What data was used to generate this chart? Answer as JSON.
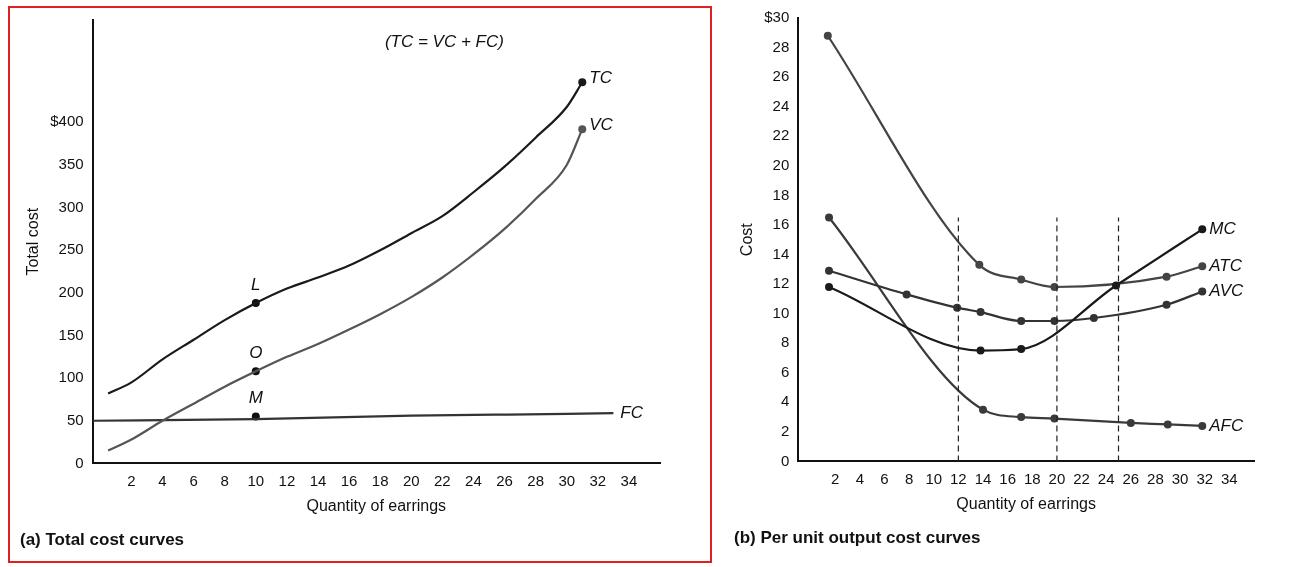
{
  "chart_data": [
    {
      "type": "line",
      "title": "(a) Total cost curves",
      "xlabel": "Quantity of earrings",
      "ylabel": "Total cost",
      "xlim": [
        -0.5,
        36
      ],
      "xticks": [
        2,
        4,
        6,
        8,
        10,
        12,
        14,
        16,
        18,
        20,
        22,
        24,
        26,
        28,
        30,
        32,
        34
      ],
      "ylim": [
        0,
        520
      ],
      "yticks": [
        0,
        50,
        100,
        150,
        200,
        250,
        300,
        350,
        {
          "value": 400,
          "label": "$400"
        }
      ],
      "grid": false,
      "legend": false,
      "marker": "none",
      "line_style": "solid",
      "series": [
        {
          "name": "TC",
          "color": "#1a1a1a",
          "x": [
            0.5,
            2,
            4,
            6,
            8,
            10,
            12,
            14,
            16,
            18,
            20,
            22,
            24,
            26,
            28,
            30,
            31
          ],
          "values": [
            82,
            95,
            122,
            145,
            168,
            188,
            205,
            218,
            232,
            250,
            270,
            290,
            318,
            348,
            382,
            418,
            447
          ]
        },
        {
          "name": "VC",
          "color": "#555555",
          "x": [
            0.5,
            2,
            4,
            6,
            8,
            10,
            12,
            14,
            16,
            18,
            20,
            22,
            24,
            26,
            28,
            30,
            31
          ],
          "values": [
            15,
            28,
            50,
            70,
            90,
            108,
            125,
            140,
            157,
            175,
            195,
            218,
            245,
            275,
            310,
            350,
            392
          ]
        },
        {
          "name": "FC",
          "color": "#333333",
          "x": [
            -0.5,
            10,
            20,
            30,
            33
          ],
          "values": [
            50,
            52,
            56,
            58,
            59
          ]
        },
        {
          "type": "scatter",
          "marker": "circle",
          "color": "#111111",
          "x": [
            10,
            10,
            10
          ],
          "values": [
            188,
            108,
            55
          ],
          "value_labels": [
            "L",
            "O",
            "M"
          ]
        }
      ],
      "annotations": [
        "(TC = VC + FC)"
      ]
    },
    {
      "type": "line",
      "title": "(b) Per unit output cost curves",
      "xlabel": "Quantity of earrings",
      "ylabel": "Cost",
      "xlim": [
        -1,
        36
      ],
      "xticks": [
        2,
        4,
        6,
        8,
        10,
        12,
        14,
        16,
        18,
        20,
        22,
        24,
        26,
        28,
        30,
        32,
        34
      ],
      "ylim": [
        0,
        30
      ],
      "yticks": [
        0,
        2,
        4,
        6,
        8,
        10,
        12,
        14,
        16,
        18,
        20,
        22,
        24,
        26,
        28,
        {
          "value": 30,
          "label": "$30"
        }
      ],
      "grid": false,
      "legend": false,
      "marker": "circle",
      "line_style": "solid",
      "series": [
        {
          "name": "MC",
          "color": "#1a1a1a",
          "x": [
            1.5,
            13.8,
            17.1,
            24.8,
            31.8
          ],
          "values": [
            11.8,
            7.5,
            7.6,
            11.9,
            15.7
          ]
        },
        {
          "name": "ATC",
          "color": "#444444",
          "x": [
            1.4,
            13.7,
            17.1,
            19.8,
            28.9,
            31.8
          ],
          "values": [
            28.8,
            13.3,
            12.3,
            11.8,
            12.5,
            13.2
          ]
        },
        {
          "name": "AVC",
          "color": "#333333",
          "x": [
            1.5,
            7.8,
            11.9,
            13.8,
            17.1,
            19.8,
            23,
            28.9,
            31.8
          ],
          "values": [
            12.9,
            11.3,
            10.4,
            10.1,
            9.5,
            9.5,
            9.7,
            10.6,
            11.5
          ]
        },
        {
          "name": "AFC",
          "color": "#3a3a3a",
          "x": [
            1.5,
            14,
            17.1,
            19.8,
            26,
            29,
            31.8
          ],
          "values": [
            16.5,
            3.5,
            3.0,
            2.9,
            2.6,
            2.5,
            2.4
          ]
        }
      ],
      "ref_lines": [
        {
          "axis": "x",
          "value": 12,
          "line_style": "dashed"
        },
        {
          "axis": "x",
          "value": 20,
          "line_style": "dashed"
        },
        {
          "axis": "x",
          "value": 25,
          "line_style": "dashed"
        }
      ]
    }
  ]
}
